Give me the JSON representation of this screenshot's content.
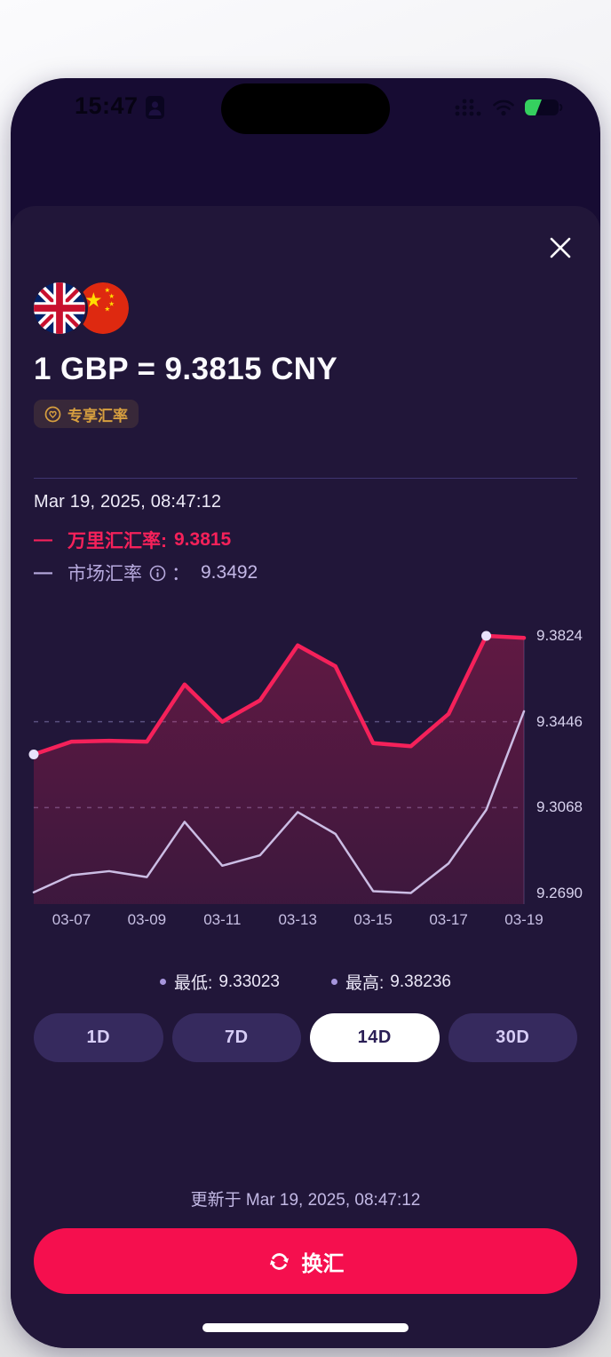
{
  "status_bar": {
    "time": "15:47"
  },
  "header": {
    "pair_title": "1 GBP = 9.3815 CNY",
    "badge_label": "专享汇率"
  },
  "rate_info": {
    "timestamp": "Mar 19, 2025, 08:47:12",
    "wise": {
      "dash": "—",
      "label": "万里汇汇率:",
      "value": "9.3815"
    },
    "market": {
      "dash": "—",
      "label": "市场汇率",
      "colon": "：",
      "value": "9.3492"
    }
  },
  "chart_data": {
    "type": "line",
    "x": [
      "03-06",
      "03-07",
      "03-08",
      "03-09",
      "03-10",
      "03-11",
      "03-12",
      "03-13",
      "03-14",
      "03-15",
      "03-16",
      "03-17",
      "03-18",
      "03-19"
    ],
    "series": [
      {
        "name": "万里汇汇率",
        "color": "#f5215a",
        "fill": true,
        "markers": [
          0,
          12
        ],
        "values": [
          9.3302,
          9.3358,
          9.3362,
          9.3358,
          9.361,
          9.3446,
          9.354,
          9.3782,
          9.369,
          9.3352,
          9.3338,
          9.348,
          9.3824,
          9.3815
        ]
      },
      {
        "name": "市场汇率",
        "color": "#cbbde4",
        "values": [
          9.2695,
          9.277,
          9.2788,
          9.2762,
          9.3005,
          9.2812,
          9.2858,
          9.3048,
          9.2952,
          9.27,
          9.2692,
          9.2822,
          9.3058,
          9.3492
        ]
      }
    ],
    "y_ticks": [
      9.3824,
      9.3446,
      9.3068,
      9.269
    ],
    "gridlines_dashed": [
      9.3446,
      9.3068
    ],
    "ylim": [
      9.269,
      9.3824
    ],
    "x_tick_labels": [
      "03-07",
      "03-09",
      "03-11",
      "03-13",
      "03-15",
      "03-17",
      "03-19"
    ],
    "x_tick_indices": [
      1,
      3,
      5,
      7,
      9,
      11,
      13
    ],
    "legend_position": "above-top-left",
    "marker_color": "#e9e3fb",
    "title": "GBP/CNY 14D rate history"
  },
  "stats": {
    "low_label": "最低:",
    "low_value": "9.33023",
    "high_label": "最高:",
    "high_value": "9.38236"
  },
  "periods": [
    {
      "label": "1D",
      "selected": false
    },
    {
      "label": "7D",
      "selected": false
    },
    {
      "label": "14D",
      "selected": true
    },
    {
      "label": "30D",
      "selected": false
    }
  ],
  "footer": {
    "updated_text": "更新于 Mar 19, 2025, 08:47:12",
    "cta_label": "换汇"
  },
  "colors": {
    "accent": "#f5215a",
    "market_line": "#cbbde4",
    "cta_background": "#f50f4e",
    "sheet_background": "#211639",
    "phone_background": "#170c33",
    "badge_text": "#d79f3f",
    "battery_charge": "#35d05f"
  }
}
